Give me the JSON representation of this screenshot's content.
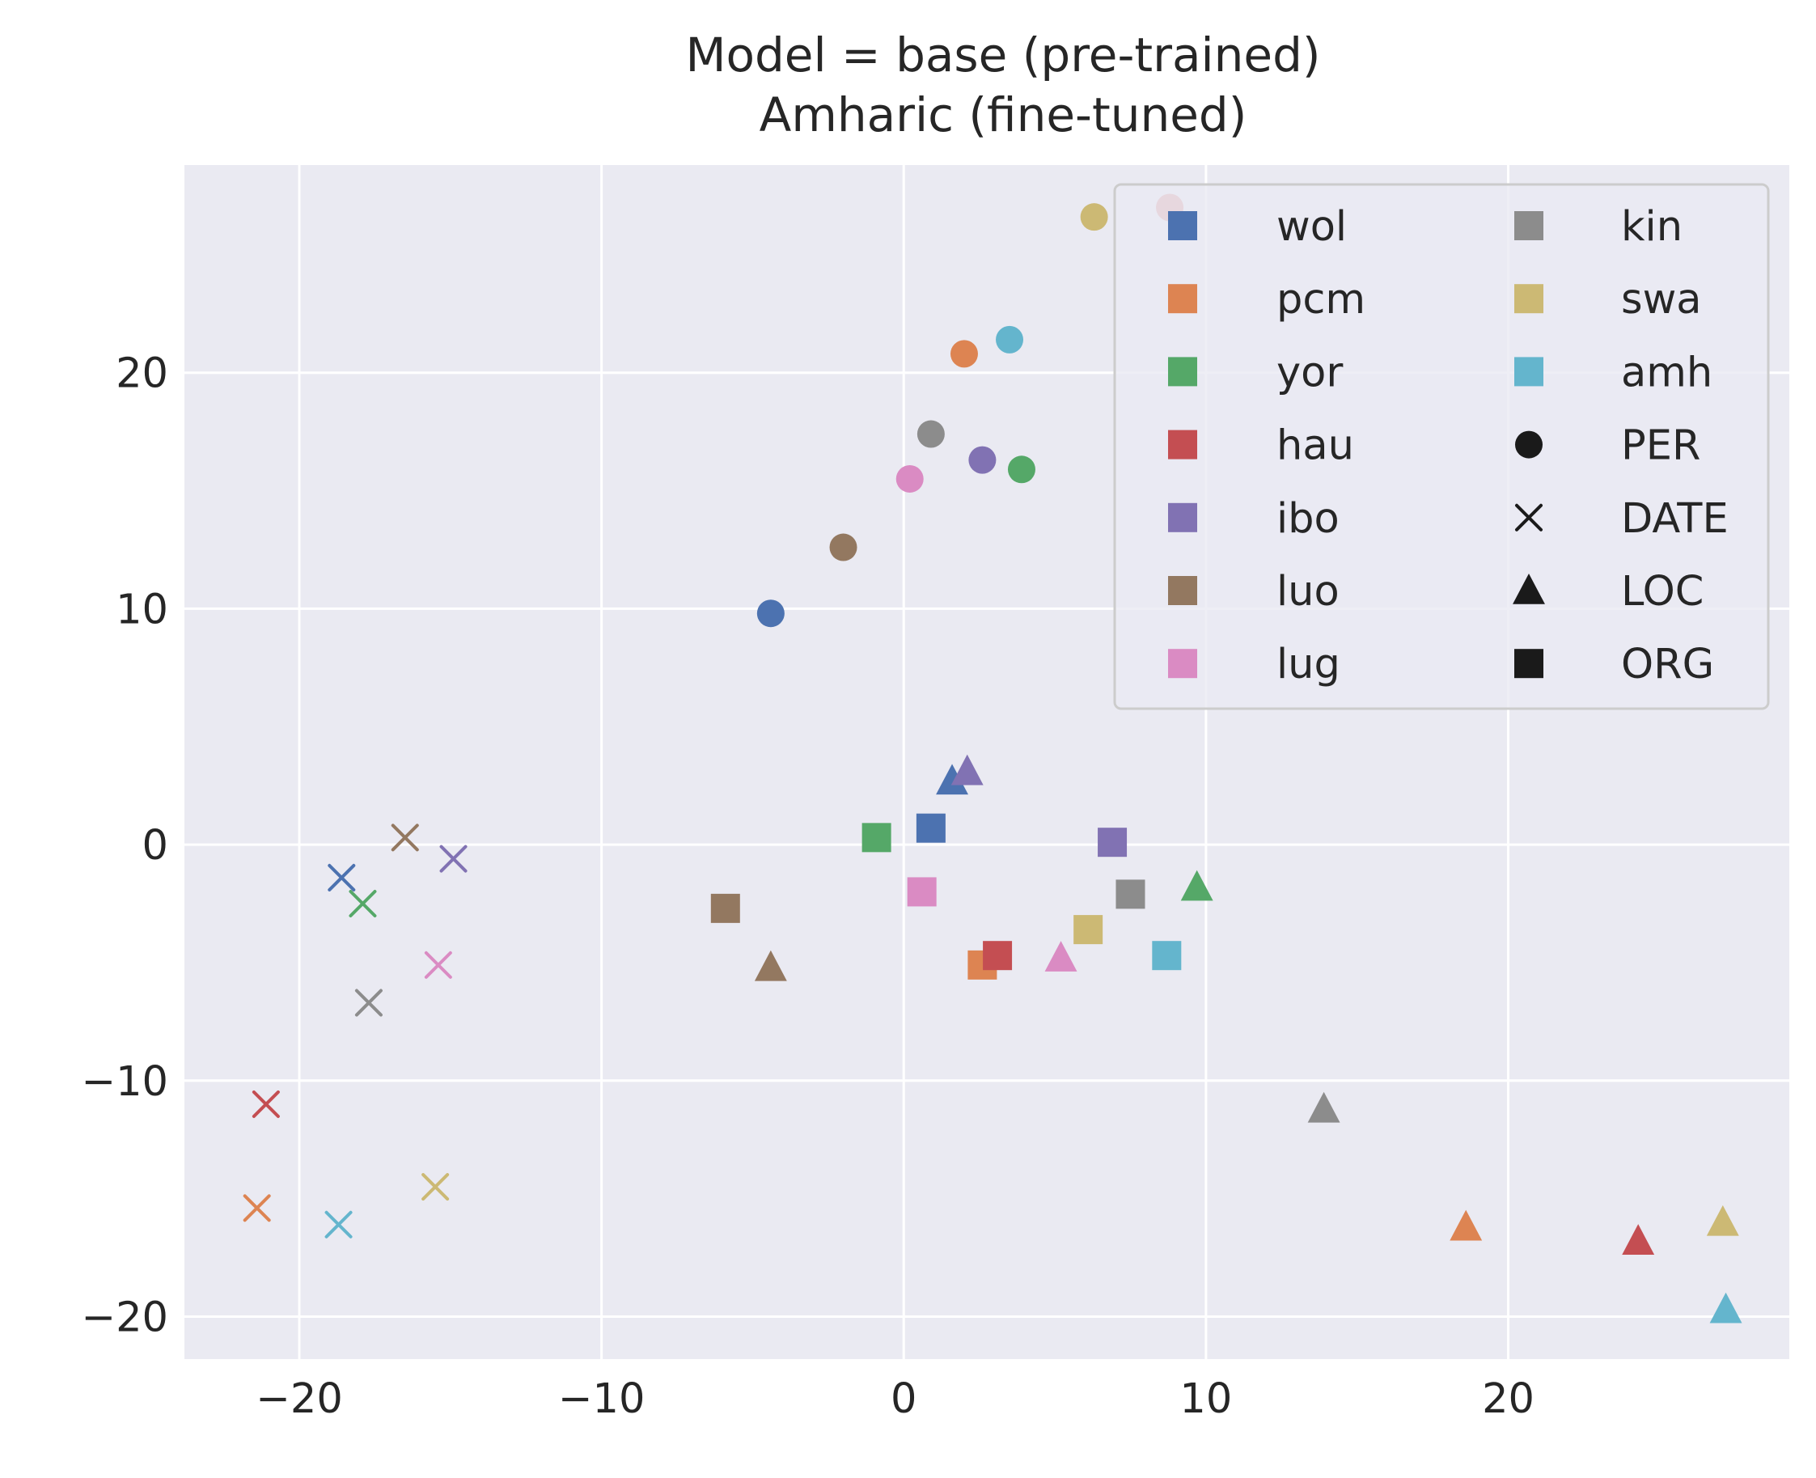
{
  "chart_data": {
    "type": "scatter",
    "title": "Model = base (pre-trained)",
    "subtitle": "Amharic (fine-tuned)",
    "xlabel": "",
    "ylabel": "",
    "xlim": [
      -23.8,
      29.3
    ],
    "ylim": [
      -21.8,
      28.8
    ],
    "xticks": [
      -20,
      -10,
      0,
      10,
      20
    ],
    "yticks": [
      -20,
      -10,
      0,
      10,
      20
    ],
    "xtick_labels": [
      "−20",
      "−10",
      "0",
      "10",
      "20"
    ],
    "ytick_labels": [
      "−20",
      "−10",
      "0",
      "10",
      "20"
    ],
    "grid": true,
    "background": "#eaeaf2",
    "legend_position": "top-right",
    "legend_columns": 2,
    "colors": {
      "wol": "#4c72b0",
      "pcm": "#dd8452",
      "yor": "#55a868",
      "hau": "#c44e52",
      "ibo": "#8172b3",
      "luo": "#937860",
      "lug": "#da8bc3",
      "kin": "#8c8c8c",
      "swa": "#ccb974",
      "amh": "#64b5cd",
      "extra": "#d98a8e",
      "entity_marker": "#1a1a1a"
    },
    "languages": [
      "wol",
      "pcm",
      "yor",
      "hau",
      "ibo",
      "luo",
      "lug",
      "kin",
      "swa",
      "amh"
    ],
    "entity_types": [
      {
        "name": "PER",
        "marker": "circle"
      },
      {
        "name": "DATE",
        "marker": "x"
      },
      {
        "name": "LOC",
        "marker": "triangle"
      },
      {
        "name": "ORG",
        "marker": "square"
      }
    ],
    "points": [
      {
        "lang": "wol",
        "entity": "PER",
        "x": -4.4,
        "y": 9.8
      },
      {
        "lang": "pcm",
        "entity": "PER",
        "x": 2.0,
        "y": 20.8
      },
      {
        "lang": "yor",
        "entity": "PER",
        "x": 3.9,
        "y": 15.9
      },
      {
        "lang": "ibo",
        "entity": "PER",
        "x": 2.6,
        "y": 16.3
      },
      {
        "lang": "luo",
        "entity": "PER",
        "x": -2.0,
        "y": 12.6
      },
      {
        "lang": "lug",
        "entity": "PER",
        "x": 0.2,
        "y": 15.5
      },
      {
        "lang": "kin",
        "entity": "PER",
        "x": 0.9,
        "y": 17.4
      },
      {
        "lang": "swa",
        "entity": "PER",
        "x": 6.3,
        "y": 26.6
      },
      {
        "lang": "amh",
        "entity": "PER",
        "x": 3.5,
        "y": 21.4
      },
      {
        "lang": "extra",
        "entity": "PER",
        "x": 8.8,
        "y": 27.0
      },
      {
        "lang": "wol",
        "entity": "DATE",
        "x": -18.6,
        "y": -1.4
      },
      {
        "lang": "pcm",
        "entity": "DATE",
        "x": -21.4,
        "y": -15.4
      },
      {
        "lang": "yor",
        "entity": "DATE",
        "x": -17.9,
        "y": -2.5
      },
      {
        "lang": "hau",
        "entity": "DATE",
        "x": -21.1,
        "y": -11.0
      },
      {
        "lang": "ibo",
        "entity": "DATE",
        "x": -14.9,
        "y": -0.6
      },
      {
        "lang": "luo",
        "entity": "DATE",
        "x": -16.5,
        "y": 0.3
      },
      {
        "lang": "lug",
        "entity": "DATE",
        "x": -15.4,
        "y": -5.1
      },
      {
        "lang": "kin",
        "entity": "DATE",
        "x": -17.7,
        "y": -6.7
      },
      {
        "lang": "swa",
        "entity": "DATE",
        "x": -15.5,
        "y": -14.5
      },
      {
        "lang": "amh",
        "entity": "DATE",
        "x": -18.7,
        "y": -16.1
      },
      {
        "lang": "wol",
        "entity": "LOC",
        "x": 1.6,
        "y": 2.7
      },
      {
        "lang": "pcm",
        "entity": "LOC",
        "x": 18.6,
        "y": -16.2
      },
      {
        "lang": "yor",
        "entity": "LOC",
        "x": 9.7,
        "y": -1.8
      },
      {
        "lang": "hau",
        "entity": "LOC",
        "x": 24.3,
        "y": -16.8
      },
      {
        "lang": "ibo",
        "entity": "LOC",
        "x": 2.1,
        "y": 3.1
      },
      {
        "lang": "luo",
        "entity": "LOC",
        "x": -4.4,
        "y": -5.2
      },
      {
        "lang": "lug",
        "entity": "LOC",
        "x": 5.2,
        "y": -4.8
      },
      {
        "lang": "kin",
        "entity": "LOC",
        "x": 13.9,
        "y": -11.2
      },
      {
        "lang": "swa",
        "entity": "LOC",
        "x": 27.1,
        "y": -16.0
      },
      {
        "lang": "amh",
        "entity": "LOC",
        "x": 27.2,
        "y": -19.7
      },
      {
        "lang": "wol",
        "entity": "ORG",
        "x": 0.9,
        "y": 0.7
      },
      {
        "lang": "pcm",
        "entity": "ORG",
        "x": 2.6,
        "y": -5.1
      },
      {
        "lang": "yor",
        "entity": "ORG",
        "x": -0.9,
        "y": 0.3
      },
      {
        "lang": "hau",
        "entity": "ORG",
        "x": 3.1,
        "y": -4.7
      },
      {
        "lang": "ibo",
        "entity": "ORG",
        "x": 6.9,
        "y": 0.1
      },
      {
        "lang": "luo",
        "entity": "ORG",
        "x": -5.9,
        "y": -2.7
      },
      {
        "lang": "lug",
        "entity": "ORG",
        "x": 0.6,
        "y": -2.0
      },
      {
        "lang": "kin",
        "entity": "ORG",
        "x": 7.5,
        "y": -2.1
      },
      {
        "lang": "swa",
        "entity": "ORG",
        "x": 6.1,
        "y": -3.6
      },
      {
        "lang": "amh",
        "entity": "ORG",
        "x": 8.7,
        "y": -4.7
      }
    ]
  }
}
